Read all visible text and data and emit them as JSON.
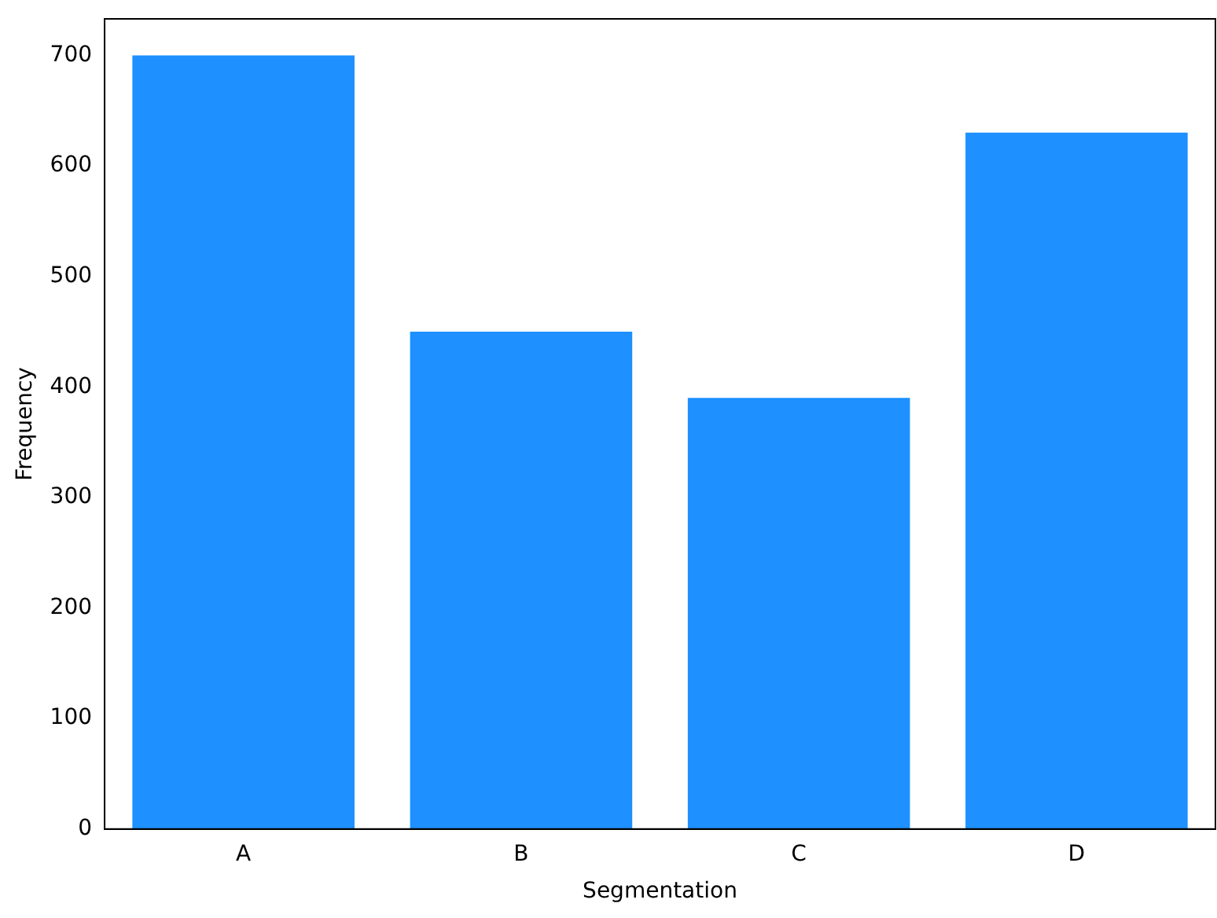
{
  "chart_data": {
    "type": "bar",
    "xlabel": "Segmentation",
    "ylabel": "Frequency",
    "categories": [
      "A",
      "B",
      "C",
      "D"
    ],
    "values": [
      700,
      450,
      390,
      630
    ],
    "color": "#1e90ff",
    "ylim": [
      0,
      733
    ],
    "yticks": [
      0,
      100,
      200,
      300,
      400,
      500,
      600,
      700
    ],
    "grid": false,
    "legend": false
  }
}
